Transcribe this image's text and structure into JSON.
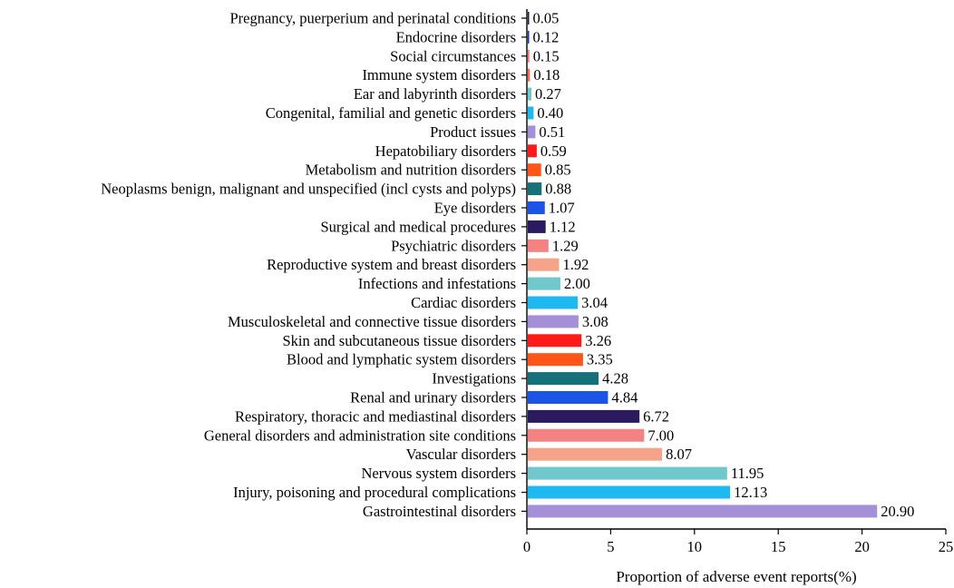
{
  "chart_data": {
    "type": "bar",
    "orientation": "horizontal",
    "xlabel": "Proportion of adverse event reports(%)",
    "ylabel": "",
    "xlim": [
      0,
      25
    ],
    "xticks": [
      0,
      5,
      10,
      15,
      20,
      25
    ],
    "xtick_labels": [
      "0",
      "5",
      "10",
      "15",
      "20",
      "25"
    ],
    "grid": false,
    "categories": [
      "Pregnancy, puerperium and perinatal conditions",
      "Endocrine disorders",
      "Social circumstances",
      "Immune system disorders",
      "Ear and labyrinth disorders",
      "Congenital, familial and genetic disorders",
      "Product issues",
      "Hepatobiliary disorders",
      "Metabolism and nutrition disorders",
      "Neoplasms benign, malignant and unspecified (incl cysts and polyps)",
      "Eye disorders",
      "Surgical and medical procedures",
      "Psychiatric disorders",
      "Reproductive system and breast disorders",
      "Infections and infestations",
      "Cardiac disorders",
      "Musculoskeletal and connective tissue disorders",
      "Skin and subcutaneous tissue disorders",
      "Blood and lymphatic system disorders",
      "Investigations",
      "Renal and urinary disorders",
      "Respiratory, thoracic and mediastinal disorders",
      "General disorders and administration site conditions",
      "Vascular disorders",
      "Nervous system disorders",
      "Injury, poisoning and procedural complications",
      "Gastrointestinal disorders"
    ],
    "values": [
      0.05,
      0.12,
      0.15,
      0.18,
      0.27,
      0.4,
      0.51,
      0.59,
      0.85,
      0.88,
      1.07,
      1.12,
      1.29,
      1.92,
      2.0,
      3.04,
      3.08,
      3.26,
      3.35,
      4.28,
      4.84,
      6.72,
      7.0,
      8.07,
      11.95,
      12.13,
      20.9
    ],
    "value_labels": [
      "0.05",
      "0.12",
      "0.15",
      "0.18",
      "0.27",
      "0.40",
      "0.51",
      "0.59",
      "0.85",
      "0.88",
      "1.07",
      "1.12",
      "1.29",
      "1.92",
      "2.00",
      "3.04",
      "3.08",
      "3.26",
      "3.35",
      "4.28",
      "4.84",
      "6.72",
      "7.00",
      "8.07",
      "11.95",
      "12.13",
      "20.90"
    ],
    "colors": [
      "#2b1a4e",
      "#1f3a8f",
      "#f08070",
      "#f07050",
      "#70c8c8",
      "#20b8f0",
      "#a58fd8",
      "#ff1a1a",
      "#ff5518",
      "#16707a",
      "#1a55e8",
      "#2b1a5e",
      "#f48282",
      "#f5a48a",
      "#70c8cc",
      "#20b8f0",
      "#a58fd8",
      "#ff1a1a",
      "#ff5518",
      "#16707a",
      "#1a55e8",
      "#2b1a5e",
      "#f48282",
      "#f5a48a",
      "#70c8cc",
      "#20b8f0",
      "#a58fd8"
    ]
  }
}
